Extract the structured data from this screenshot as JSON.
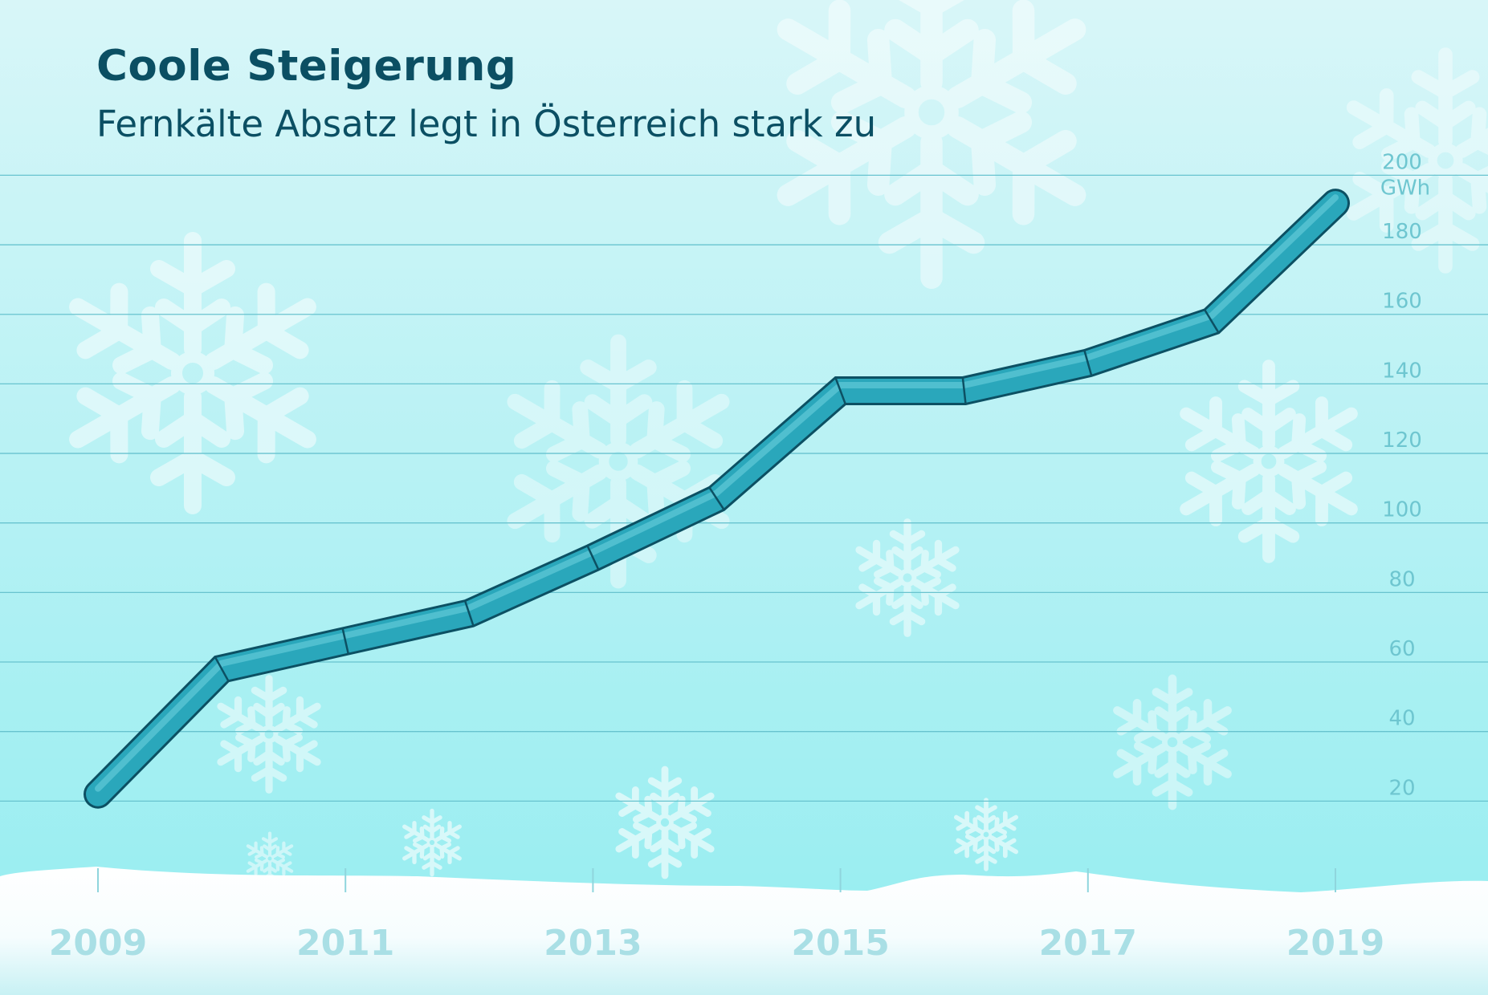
{
  "title": "Coole Steigerung",
  "subtitle": "Fernkälte Absatz legt in Österreich stark zu",
  "colors": {
    "background_top": "#d8f6f8",
    "background_bottom": "#93edf0",
    "line_fill": "#2aa7bb",
    "line_outline": "#0c5063",
    "gridline": "#68c3cf",
    "tick_label": "#6ec6d0",
    "year_label": "#a9dfe5",
    "snow": "#ffffff",
    "title": "#0b4f63"
  },
  "icons": [
    "snowflake-icon"
  ],
  "chart_data": {
    "type": "line",
    "title": "Coole Steigerung",
    "subtitle": "Fernkälte Absatz legt in Österreich stark zu",
    "unit": "GWh",
    "x_tick_labels": [
      "2009",
      "2011",
      "2013",
      "2015",
      "2017",
      "2019"
    ],
    "y_ticks": [
      20,
      40,
      60,
      80,
      100,
      120,
      140,
      160,
      180,
      200
    ],
    "ylim": [
      0,
      200
    ],
    "xlim": [
      2009,
      2019
    ],
    "grid": true,
    "series": [
      {
        "x": [
          2009,
          2010,
          2011,
          2012,
          2013,
          2014,
          2015,
          2016,
          2017,
          2018,
          2019
        ],
        "values": [
          22,
          58,
          66,
          74,
          90,
          107,
          138,
          138,
          146,
          158,
          192
        ]
      }
    ]
  }
}
